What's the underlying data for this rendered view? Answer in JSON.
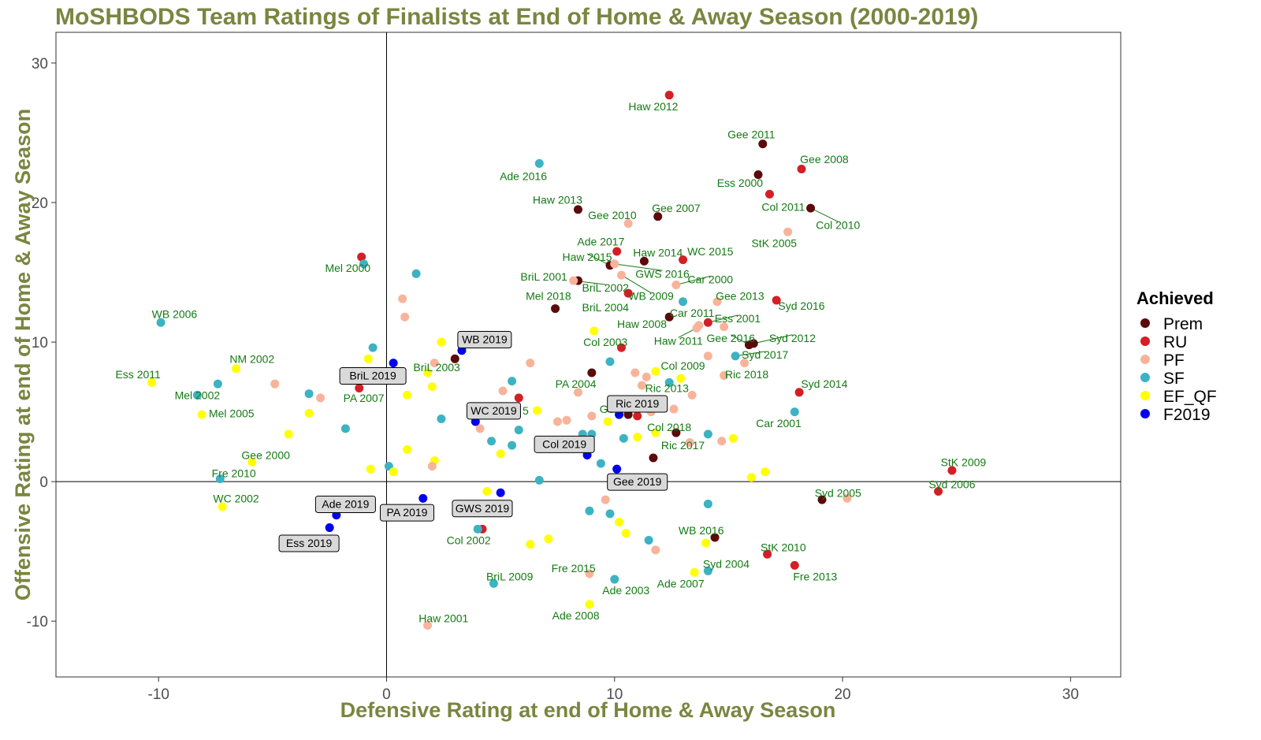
{
  "chart_data": {
    "type": "scatter",
    "title": "MoSHBODS Team Ratings of Finalists at End of Home & Away Season (2000-2019)",
    "xlabel": "Defensive Rating at end of Home & Away Season",
    "ylabel": "Offensive Rating at end of Home & Away Season",
    "xlim": [
      -14.5,
      32.2
    ],
    "ylim": [
      -14.0,
      32.2
    ],
    "xticks": [
      -10,
      0,
      10,
      20,
      30
    ],
    "yticks": [
      -10,
      0,
      10,
      20,
      30
    ],
    "reference_lines": {
      "x": 0,
      "y": 0
    },
    "legend": {
      "title": "Achieved",
      "position": "right",
      "entries": [
        {
          "key": "Prem",
          "label": "Prem",
          "color": "#5c0a0a"
        },
        {
          "key": "RU",
          "label": "RU",
          "color": "#d31f25"
        },
        {
          "key": "PF",
          "label": "PF",
          "color": "#f7b49a"
        },
        {
          "key": "SF",
          "label": "SF",
          "color": "#3cb3c3"
        },
        {
          "key": "EF_QF",
          "label": "EF_QF",
          "color": "#ffff00"
        },
        {
          "key": "F2019",
          "label": "F2019",
          "color": "#0000ee"
        }
      ]
    },
    "colors": {
      "title": "#7a8540",
      "axis_title": "#7a8540",
      "point_label": "#147a14",
      "box_fill": "#d9d9d9"
    },
    "points": [
      {
        "x": 12.4,
        "y": 27.7,
        "g": "RU",
        "label": "Haw 2012",
        "lx": 11.7,
        "ly": 26.9
      },
      {
        "x": 16.5,
        "y": 24.2,
        "g": "Prem",
        "label": "Gee 2011",
        "lx": 16.0,
        "ly": 24.9
      },
      {
        "x": 18.2,
        "y": 22.4,
        "g": "RU",
        "label": "Gee 2008",
        "lx": 19.2,
        "ly": 23.1
      },
      {
        "x": 16.3,
        "y": 22.0,
        "g": "Prem",
        "label": "Ess 2000",
        "lx": 15.5,
        "ly": 21.4
      },
      {
        "x": 16.8,
        "y": 20.6,
        "g": "RU",
        "label": "Col 2011",
        "lx": 17.4,
        "ly": 19.7
      },
      {
        "x": 18.6,
        "y": 19.6,
        "g": "Prem",
        "label": "Col 2010",
        "lx": 19.8,
        "ly": 18.4,
        "leader": true
      },
      {
        "x": 6.7,
        "y": 22.8,
        "g": "SF",
        "label": "Ade 2016",
        "lx": 6.0,
        "ly": 21.9
      },
      {
        "x": 8.4,
        "y": 19.5,
        "g": "Prem",
        "label": "Haw 2013",
        "lx": 7.5,
        "ly": 20.2
      },
      {
        "x": 11.9,
        "y": 19.0,
        "g": "Prem",
        "label": "Gee 2007",
        "lx": 12.7,
        "ly": 19.6
      },
      {
        "x": 10.6,
        "y": 18.5,
        "g": "PF",
        "label": "Gee 2010",
        "lx": 9.9,
        "ly": 19.1
      },
      {
        "x": 17.6,
        "y": 17.9,
        "g": "PF",
        "label": "StK 2005",
        "lx": 17.0,
        "ly": 17.1
      },
      {
        "x": 10.1,
        "y": 16.5,
        "g": "RU",
        "label": "Ade 2017",
        "lx": 9.4,
        "ly": 17.2
      },
      {
        "x": 9.8,
        "y": 15.5,
        "g": "Prem",
        "label": "Haw 2015",
        "lx": 8.8,
        "ly": 16.1,
        "leader": true
      },
      {
        "x": 11.3,
        "y": 15.8,
        "g": "Prem",
        "label": "Haw 2014",
        "lx": 11.9,
        "ly": 16.4
      },
      {
        "x": 13.0,
        "y": 15.9,
        "g": "RU",
        "label": "WC 2015",
        "lx": 14.2,
        "ly": 16.5
      },
      {
        "x": 10.0,
        "y": 15.6,
        "g": "PF",
        "label": "GWS 2016",
        "lx": 12.1,
        "ly": 14.9,
        "leader": true
      },
      {
        "x": 12.7,
        "y": 14.1,
        "g": "PF",
        "label": "Car 2000",
        "lx": 14.2,
        "ly": 14.5,
        "leader": true
      },
      {
        "x": 8.4,
        "y": 14.4,
        "g": "Prem",
        "label": "BriL 2001",
        "lx": 6.9,
        "ly": 14.7
      },
      {
        "x": 8.2,
        "y": 14.4,
        "g": "PF",
        "label": "BriL 2002",
        "lx": 9.6,
        "ly": 13.9,
        "leader": true
      },
      {
        "x": 10.3,
        "y": 14.8,
        "g": "PF",
        "label": "WB 2009",
        "lx": 11.6,
        "ly": 13.3,
        "leader": true
      },
      {
        "x": 10.6,
        "y": 13.5,
        "g": "RU",
        "label": "BriL 2004",
        "lx": 9.6,
        "ly": 12.5
      },
      {
        "x": 7.4,
        "y": 12.4,
        "g": "Prem",
        "label": "Mel 2018",
        "lx": 7.1,
        "ly": 13.3
      },
      {
        "x": 14.5,
        "y": 12.9,
        "g": "PF",
        "label": "Gee 2013",
        "lx": 15.5,
        "ly": 13.3
      },
      {
        "x": 17.1,
        "y": 13.0,
        "g": "RU",
        "label": "Syd 2016",
        "lx": 18.2,
        "ly": 12.6
      },
      {
        "x": 13.0,
        "y": 12.9,
        "g": "SF"
      },
      {
        "x": 12.4,
        "y": 11.8,
        "g": "Prem",
        "label": "Car 2011",
        "lx": 13.4,
        "ly": 12.1
      },
      {
        "x": 14.1,
        "y": 11.4,
        "g": "RU",
        "label": "Ess 2001",
        "lx": 15.4,
        "ly": 11.7,
        "leader": true
      },
      {
        "x": 14.8,
        "y": 11.1,
        "g": "PF"
      },
      {
        "x": 13.7,
        "y": 11.2,
        "g": "PF",
        "label": "Haw 2008",
        "lx": 11.2,
        "ly": 11.3
      },
      {
        "x": 13.6,
        "y": 11.0,
        "g": "PF",
        "label": "Haw 2011",
        "lx": 12.8,
        "ly": 10.1,
        "leader": true
      },
      {
        "x": 15.9,
        "y": 9.8,
        "g": "Prem",
        "label": "Gee 2016",
        "lx": 15.1,
        "ly": 10.3,
        "leader": true
      },
      {
        "x": 16.1,
        "y": 9.9,
        "g": "Prem",
        "label": "Syd 2012",
        "lx": 17.8,
        "ly": 10.3,
        "leader": true
      },
      {
        "x": 15.3,
        "y": 9.0,
        "g": "SF",
        "label": "Syd 2017",
        "lx": 16.6,
        "ly": 9.1,
        "leader": true
      },
      {
        "x": 15.7,
        "y": 8.5,
        "g": "PF"
      },
      {
        "x": 14.1,
        "y": 9.0,
        "g": "PF"
      },
      {
        "x": 9.1,
        "y": 10.8,
        "g": "EF_QF"
      },
      {
        "x": 10.3,
        "y": 9.6,
        "g": "RU",
        "label": "Col 2003",
        "lx": 9.6,
        "ly": 10.0
      },
      {
        "x": 9.8,
        "y": 8.6,
        "g": "SF"
      },
      {
        "x": 14.8,
        "y": 7.6,
        "g": "PF",
        "label": "Ric 2018",
        "lx": 15.8,
        "ly": 7.7
      },
      {
        "x": 9.0,
        "y": 7.8,
        "g": "Prem",
        "label": "PA 2004",
        "lx": 8.3,
        "ly": 7.0
      },
      {
        "x": 11.8,
        "y": 7.9,
        "g": "EF_QF",
        "label": "Col 2009",
        "lx": 13.0,
        "ly": 8.3
      },
      {
        "x": 10.9,
        "y": 7.8,
        "g": "PF"
      },
      {
        "x": 11.4,
        "y": 7.5,
        "g": "PF"
      },
      {
        "x": 12.9,
        "y": 7.4,
        "g": "EF_QF"
      },
      {
        "x": 12.4,
        "y": 7.1,
        "g": "SF",
        "label": "Ric 2013",
        "lx": 12.3,
        "ly": 6.7
      },
      {
        "x": 11.2,
        "y": 6.9,
        "g": "PF"
      },
      {
        "x": 13.4,
        "y": 6.2,
        "g": "PF"
      },
      {
        "x": 18.1,
        "y": 6.4,
        "g": "RU",
        "label": "Syd 2014",
        "lx": 19.2,
        "ly": 7.0
      },
      {
        "x": 17.9,
        "y": 5.0,
        "g": "SF",
        "label": "Car 2001",
        "lx": 17.2,
        "ly": 4.2
      },
      {
        "x": 8.4,
        "y": 6.4,
        "g": "PF"
      },
      {
        "x": 11.6,
        "y": 5.0,
        "g": "PF"
      },
      {
        "x": 12.6,
        "y": 5.2,
        "g": "PF"
      },
      {
        "x": 11.0,
        "y": 4.7,
        "g": "RU",
        "label": "Gee",
        "lx": 9.8,
        "ly": 5.2
      },
      {
        "x": 10.6,
        "y": 4.8,
        "g": "Prem",
        "label": "Col 2018",
        "lx": 12.4,
        "ly": 3.9
      },
      {
        "x": 9.7,
        "y": 4.3,
        "g": "EF_QF"
      },
      {
        "x": 9.0,
        "y": 4.7,
        "g": "PF"
      },
      {
        "x": 12.7,
        "y": 3.5,
        "g": "Prem"
      },
      {
        "x": 11.8,
        "y": 3.5,
        "g": "EF_QF"
      },
      {
        "x": 11.0,
        "y": 3.2,
        "g": "EF_QF"
      },
      {
        "x": 10.4,
        "y": 3.1,
        "g": "SF"
      },
      {
        "x": 14.1,
        "y": 3.4,
        "g": "SF"
      },
      {
        "x": 13.3,
        "y": 2.8,
        "g": "PF",
        "label": "Ric 2017",
        "lx": 13.0,
        "ly": 2.6
      },
      {
        "x": 14.7,
        "y": 2.9,
        "g": "PF"
      },
      {
        "x": 15.2,
        "y": 3.1,
        "g": "EF_QF"
      },
      {
        "x": 11.7,
        "y": 1.7,
        "g": "Prem"
      },
      {
        "x": 8.6,
        "y": 3.4,
        "g": "SF"
      },
      {
        "x": 9.0,
        "y": 3.4,
        "g": "SF"
      },
      {
        "x": 9.4,
        "y": 1.3,
        "g": "SF"
      },
      {
        "x": 7.5,
        "y": 4.3,
        "g": "PF"
      },
      {
        "x": 7.9,
        "y": 4.4,
        "g": "PF"
      },
      {
        "x": 24.8,
        "y": 0.8,
        "g": "RU",
        "label": "StK 2009",
        "lx": 25.3,
        "ly": 1.4
      },
      {
        "x": 24.2,
        "y": -0.7,
        "g": "RU",
        "label": "Syd 2006",
        "lx": 24.8,
        "ly": -0.2
      },
      {
        "x": 19.1,
        "y": -1.3,
        "g": "Prem",
        "label": "Syd 2005",
        "lx": 19.8,
        "ly": -0.8
      },
      {
        "x": 20.2,
        "y": -1.2,
        "g": "PF"
      },
      {
        "x": 16.0,
        "y": 0.3,
        "g": "EF_QF"
      },
      {
        "x": 16.6,
        "y": 0.7,
        "g": "EF_QF"
      },
      {
        "x": 14.1,
        "y": -1.6,
        "g": "SF"
      },
      {
        "x": 14.4,
        "y": -4.0,
        "g": "Prem",
        "label": "WB 2016",
        "lx": 13.8,
        "ly": -3.5
      },
      {
        "x": 14.0,
        "y": -4.4,
        "g": "EF_QF"
      },
      {
        "x": 16.7,
        "y": -5.2,
        "g": "RU",
        "label": "StK 2010",
        "lx": 17.4,
        "ly": -4.7
      },
      {
        "x": 17.9,
        "y": -6.0,
        "g": "RU",
        "label": "Fre 2013",
        "lx": 18.8,
        "ly": -6.8
      },
      {
        "x": 14.1,
        "y": -6.4,
        "g": "SF",
        "label": "Syd 2004",
        "lx": 14.9,
        "ly": -5.9
      },
      {
        "x": 13.5,
        "y": -6.5,
        "g": "EF_QF",
        "label": "Ade 2007",
        "lx": 12.9,
        "ly": -7.3
      },
      {
        "x": 11.8,
        "y": -4.9,
        "g": "PF"
      },
      {
        "x": 11.5,
        "y": -4.2,
        "g": "SF"
      },
      {
        "x": 10.5,
        "y": -3.7,
        "g": "EF_QF"
      },
      {
        "x": 10.2,
        "y": -2.9,
        "g": "EF_QF"
      },
      {
        "x": 9.8,
        "y": -2.3,
        "g": "SF"
      },
      {
        "x": 8.9,
        "y": -2.1,
        "g": "SF"
      },
      {
        "x": 9.6,
        "y": -1.3,
        "g": "PF"
      },
      {
        "x": 8.9,
        "y": -6.6,
        "g": "PF",
        "label": "Fre 2015",
        "lx": 8.2,
        "ly": -6.2
      },
      {
        "x": 10.0,
        "y": -7.0,
        "g": "SF",
        "label": "Ade 2003",
        "lx": 10.5,
        "ly": -7.8
      },
      {
        "x": 8.9,
        "y": -8.8,
        "g": "EF_QF",
        "label": "Ade 2008",
        "lx": 8.3,
        "ly": -9.6
      },
      {
        "x": 7.1,
        "y": -4.1,
        "g": "EF_QF"
      },
      {
        "x": 6.3,
        "y": -4.5,
        "g": "EF_QF"
      },
      {
        "x": 4.7,
        "y": -7.3,
        "g": "SF",
        "label": "BriL 2009",
        "lx": 5.4,
        "ly": -6.8
      },
      {
        "x": 4.2,
        "y": -3.4,
        "g": "RU"
      },
      {
        "x": 4.0,
        "y": -3.4,
        "g": "SF",
        "label": "Col 2002",
        "lx": 3.6,
        "ly": -4.2
      },
      {
        "x": 4.4,
        "y": -0.7,
        "g": "EF_QF"
      },
      {
        "x": 1.8,
        "y": -10.3,
        "g": "PF",
        "label": "Haw 2001",
        "lx": 2.5,
        "ly": -9.8
      },
      {
        "x": 6.7,
        "y": 0.1,
        "g": "SF"
      },
      {
        "x": 5.0,
        "y": 2.0,
        "g": "EF_QF"
      },
      {
        "x": 5.5,
        "y": 2.6,
        "g": "SF"
      },
      {
        "x": 4.6,
        "y": 2.9,
        "g": "SF"
      },
      {
        "x": 5.8,
        "y": 3.7,
        "g": "SF"
      },
      {
        "x": 4.1,
        "y": 3.8,
        "g": "PF"
      },
      {
        "x": 6.6,
        "y": 5.1,
        "g": "EF_QF"
      },
      {
        "x": 5.8,
        "y": 6.0,
        "g": "RU",
        "label": "5",
        "lx": 6.1,
        "ly": 5.1
      },
      {
        "x": 5.1,
        "y": 6.5,
        "g": "PF"
      },
      {
        "x": 5.5,
        "y": 7.2,
        "g": "SF"
      },
      {
        "x": 6.3,
        "y": 8.5,
        "g": "PF"
      },
      {
        "x": 2.4,
        "y": 4.5,
        "g": "SF"
      },
      {
        "x": 2.0,
        "y": 6.8,
        "g": "EF_QF"
      },
      {
        "x": 1.8,
        "y": 7.8,
        "g": "EF_QF"
      },
      {
        "x": 2.1,
        "y": 8.5,
        "g": "PF"
      },
      {
        "x": 2.4,
        "y": 10.0,
        "g": "EF_QF"
      },
      {
        "x": 3.0,
        "y": 8.8,
        "g": "Prem",
        "label": "BriL 2003",
        "lx": 2.2,
        "ly": 8.2
      },
      {
        "x": 0.9,
        "y": 6.2,
        "g": "EF_QF"
      },
      {
        "x": 0.9,
        "y": 2.3,
        "g": "EF_QF"
      },
      {
        "x": 2.1,
        "y": 1.5,
        "g": "EF_QF"
      },
      {
        "x": 2.0,
        "y": 1.1,
        "g": "PF"
      },
      {
        "x": 0.1,
        "y": 1.1,
        "g": "SF"
      },
      {
        "x": 0.3,
        "y": 0.7,
        "g": "EF_QF"
      },
      {
        "x": 0.8,
        "y": 11.8,
        "g": "PF"
      },
      {
        "x": 0.7,
        "y": 13.1,
        "g": "PF"
      },
      {
        "x": 1.3,
        "y": 14.9,
        "g": "SF"
      },
      {
        "x": -1.1,
        "y": 16.1,
        "g": "RU",
        "label": "Mel 2000",
        "lx": -1.7,
        "ly": 15.3
      },
      {
        "x": -1.0,
        "y": 15.6,
        "g": "SF"
      },
      {
        "x": -0.6,
        "y": 9.6,
        "g": "SF"
      },
      {
        "x": -0.8,
        "y": 8.8,
        "g": "EF_QF"
      },
      {
        "x": -1.9,
        "y": 7.5,
        "g": "EF_QF"
      },
      {
        "x": -1.2,
        "y": 6.7,
        "g": "RU",
        "label": "PA 2007",
        "lx": -1.0,
        "ly": 6.0
      },
      {
        "x": -1.8,
        "y": 3.8,
        "g": "SF"
      },
      {
        "x": -0.7,
        "y": 0.9,
        "g": "EF_QF"
      },
      {
        "x": -9.9,
        "y": 11.4,
        "g": "SF",
        "label": "WB 2006",
        "lx": -9.3,
        "ly": 12.0
      },
      {
        "x": -10.3,
        "y": 7.1,
        "g": "EF_QF",
        "label": "Ess 2011",
        "lx": -10.9,
        "ly": 7.7
      },
      {
        "x": -6.6,
        "y": 8.1,
        "g": "EF_QF",
        "label": "NM 2002",
        "lx": -5.9,
        "ly": 8.8
      },
      {
        "x": -7.4,
        "y": 7.0,
        "g": "SF"
      },
      {
        "x": -4.9,
        "y": 7.0,
        "g": "PF"
      },
      {
        "x": -8.3,
        "y": 6.2,
        "g": "SF",
        "label": "Mel 2002",
        "lx": -8.3,
        "ly": 6.2
      },
      {
        "x": -3.4,
        "y": 6.3,
        "g": "SF"
      },
      {
        "x": -2.9,
        "y": 6.0,
        "g": "PF"
      },
      {
        "x": -8.1,
        "y": 4.8,
        "g": "EF_QF",
        "label": "Mel 2005",
        "lx": -6.8,
        "ly": 4.9
      },
      {
        "x": -3.4,
        "y": 4.9,
        "g": "EF_QF"
      },
      {
        "x": -4.3,
        "y": 3.4,
        "g": "EF_QF"
      },
      {
        "x": -5.9,
        "y": 1.4,
        "g": "EF_QF",
        "label": "Gee 2000",
        "lx": -5.3,
        "ly": 1.9
      },
      {
        "x": -7.3,
        "y": 0.2,
        "g": "SF",
        "label": "Fre 2010",
        "lx": -6.7,
        "ly": 0.6
      },
      {
        "x": -7.2,
        "y": -1.8,
        "g": "EF_QF",
        "label": "WC 2002",
        "lx": -6.6,
        "ly": -1.2
      },
      {
        "x": 3.3,
        "y": 9.4,
        "g": "F2019",
        "label": "WB 2019",
        "box": true,
        "lx": 4.3,
        "ly": 10.2
      },
      {
        "x": 0.3,
        "y": 8.5,
        "g": "F2019",
        "label": "BriL 2019",
        "box": true,
        "lx": -0.6,
        "ly": 7.6
      },
      {
        "x": 3.9,
        "y": 4.3,
        "g": "F2019",
        "label": "WC 2019",
        "box": true,
        "lx": 4.7,
        "ly": 5.1
      },
      {
        "x": 8.8,
        "y": 1.9,
        "g": "F2019",
        "label": "Col 2019",
        "box": true,
        "lx": 7.8,
        "ly": 2.7
      },
      {
        "x": 10.2,
        "y": 4.8,
        "g": "F2019",
        "label": "Ric 2019",
        "box": true,
        "lx": 11.0,
        "ly": 5.6
      },
      {
        "x": 10.1,
        "y": 0.9,
        "g": "F2019",
        "label": "Gee 2019",
        "box": true,
        "lx": 11.0,
        "ly": 0.0
      },
      {
        "x": 5.0,
        "y": -0.8,
        "g": "F2019",
        "label": "GWS 2019",
        "box": true,
        "lx": 4.2,
        "ly": -1.9
      },
      {
        "x": 1.6,
        "y": -1.2,
        "g": "F2019",
        "label": "PA 2019",
        "box": true,
        "lx": 0.9,
        "ly": -2.2
      },
      {
        "x": -2.2,
        "y": -2.4,
        "g": "F2019",
        "label": "Ade 2019",
        "box": true,
        "lx": -1.8,
        "ly": -1.6
      },
      {
        "x": -2.5,
        "y": -3.3,
        "g": "F2019",
        "label": "Ess 2019",
        "box": true,
        "lx": -3.4,
        "ly": -4.4
      }
    ]
  }
}
